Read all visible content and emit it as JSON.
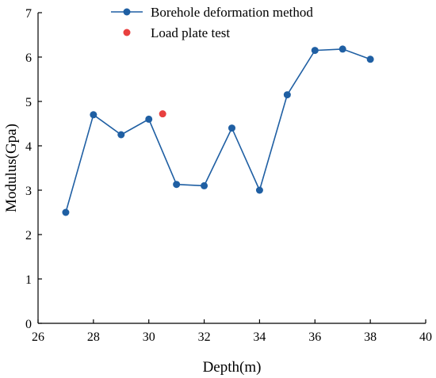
{
  "chart_data": {
    "type": "line",
    "title": "",
    "xlabel": "Depth(m)",
    "ylabel": "Modulus(Gpa)",
    "xlim": [
      26,
      40
    ],
    "ylim": [
      0,
      7
    ],
    "xticks": [
      26,
      28,
      30,
      32,
      34,
      36,
      38,
      40
    ],
    "yticks": [
      0,
      1,
      2,
      3,
      4,
      5,
      6,
      7
    ],
    "grid": false,
    "legend_position": "top",
    "series": [
      {
        "name": "Borehole deformation method",
        "color": "#1f5fa3",
        "mode": "line+markers",
        "x": [
          27,
          28,
          29,
          30,
          31,
          32,
          33,
          34,
          35,
          36,
          37,
          38
        ],
        "y": [
          2.5,
          4.7,
          4.25,
          4.6,
          3.13,
          3.1,
          4.4,
          3.0,
          5.15,
          6.15,
          6.18,
          5.95
        ]
      },
      {
        "name": "Load plate test",
        "color": "#e8403f",
        "mode": "markers",
        "x": [
          30.5
        ],
        "y": [
          4.72
        ]
      }
    ]
  }
}
